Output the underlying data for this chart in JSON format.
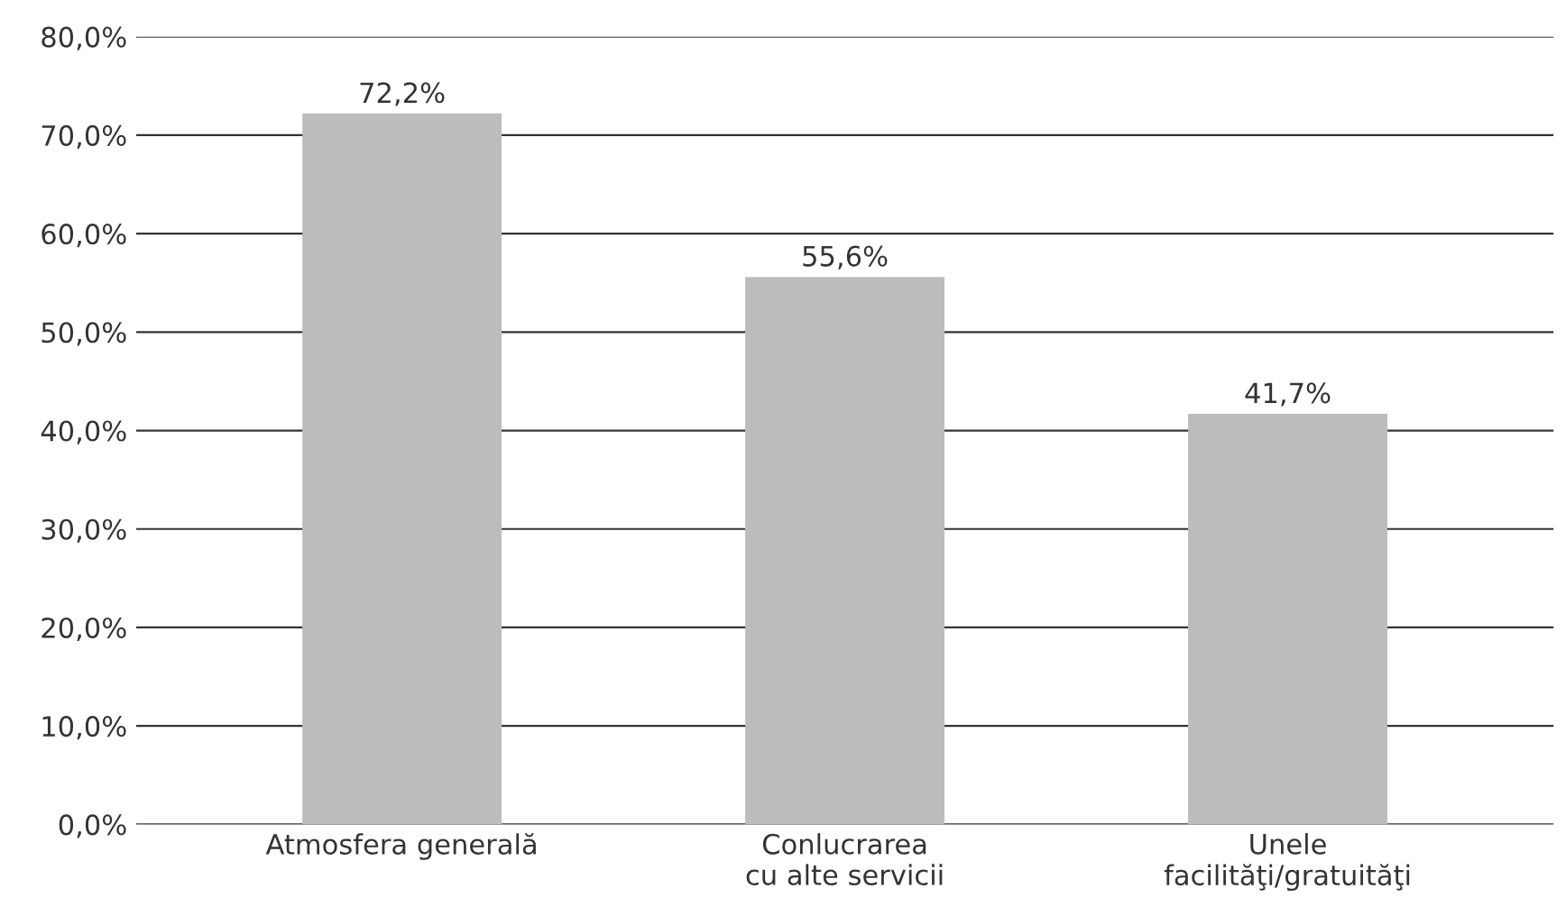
{
  "chart_data": {
    "type": "bar",
    "categories": [
      "Atmosfera generală",
      "Conlucrarea\ncu alte servicii",
      "Unele\nfacilităţi/gratuităţi"
    ],
    "values": [
      72.2,
      55.6,
      41.7
    ],
    "value_labels": [
      "72,2%",
      "55,6%",
      "41,7%"
    ],
    "color": "#bcbcbe",
    "ylim": [
      0,
      80
    ],
    "yticks": [
      {
        "value": 0,
        "label": "0,0%"
      },
      {
        "value": 10,
        "label": "10,0%"
      },
      {
        "value": 20,
        "label": "20,0%"
      },
      {
        "value": 30,
        "label": "30,0%"
      },
      {
        "value": 40,
        "label": "40,0%"
      },
      {
        "value": 50,
        "label": "50,0%"
      },
      {
        "value": 60,
        "label": "60,0%"
      },
      {
        "value": 70,
        "label": "70,0%"
      },
      {
        "value": 80,
        "label": "80,0%"
      }
    ],
    "grid": "y",
    "legend": false
  }
}
